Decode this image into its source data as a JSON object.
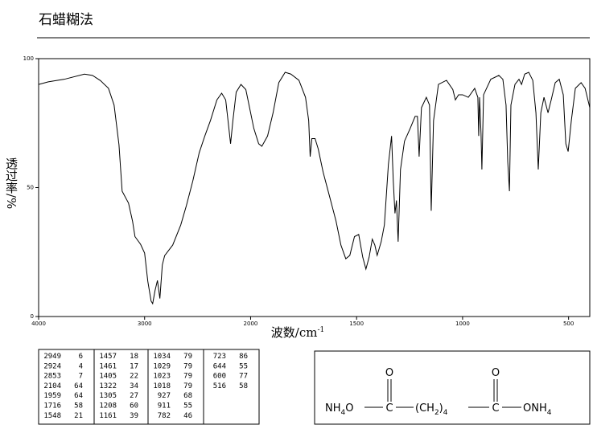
{
  "chart_data": {
    "type": "line",
    "title": "石蜡糊法",
    "x_label": "波数/cm",
    "x_label_sup": "-1",
    "y_label": "透过率/%",
    "xlim": [
      4000,
      400
    ],
    "xticks": [
      4000,
      3000,
      2000,
      1500,
      1000,
      500
    ],
    "x_scale_break": 2000,
    "ylim": [
      0,
      100
    ],
    "yticks": [
      0,
      50,
      100
    ],
    "x": [
      4000,
      3909,
      3758,
      3568,
      3492,
      3417,
      3341,
      3288,
      3242,
      3212,
      3152,
      3114,
      3091,
      3038,
      3000,
      2970,
      2939,
      2924,
      2902,
      2879,
      2856,
      2833,
      2811,
      2735,
      2659,
      2606,
      2545,
      2485,
      2432,
      2379,
      2318,
      2273,
      2235,
      2205,
      2189,
      2167,
      2136,
      2091,
      2045,
      2015,
      1985,
      1962,
      1947,
      1920,
      1894,
      1867,
      1837,
      1810,
      1772,
      1741,
      1726,
      1719,
      1711,
      1696,
      1681,
      1658,
      1627,
      1597,
      1574,
      1551,
      1532,
      1510,
      1490,
      1471,
      1456,
      1441,
      1426,
      1414,
      1403,
      1384,
      1369,
      1350,
      1335,
      1327,
      1319,
      1312,
      1304,
      1293,
      1274,
      1247,
      1224,
      1213,
      1205,
      1194,
      1171,
      1156,
      1148,
      1137,
      1114,
      1076,
      1046,
      1034,
      1019,
      1000,
      973,
      943,
      928,
      924,
      920,
      913,
      909,
      901,
      867,
      829,
      810,
      795,
      787,
      779,
      772,
      753,
      734,
      722,
      707,
      688,
      669,
      654,
      643,
      631,
      616,
      597,
      582,
      563,
      544,
      525,
      513,
      502,
      487,
      468,
      441,
      422,
      400
    ],
    "series": [
      {
        "color": "#000000",
        "values": [
          90,
          91,
          92,
          94,
          93.5,
          91.5,
          88.5,
          82,
          66.7,
          48.6,
          44,
          37,
          31,
          28,
          24.6,
          13.7,
          6,
          5,
          10,
          14,
          7,
          20,
          23.6,
          27.7,
          35.5,
          43,
          52.6,
          63.5,
          70,
          76,
          84,
          86.6,
          84,
          73,
          67,
          76,
          87,
          90,
          88,
          82,
          73,
          67,
          66,
          70,
          79,
          90.7,
          94.7,
          94,
          91.6,
          85,
          76,
          62,
          69,
          69,
          65,
          56,
          46.4,
          37,
          27.7,
          22.4,
          23.7,
          31,
          31.8,
          23,
          18.4,
          23,
          30,
          27.7,
          23.7,
          29,
          35.5,
          59,
          70,
          52.6,
          40,
          45,
          29,
          57,
          68,
          73,
          77.6,
          77.6,
          62,
          81,
          85,
          82,
          41,
          76,
          90,
          91.6,
          88,
          84,
          86,
          86,
          85,
          88.5,
          85,
          70,
          85,
          71,
          57,
          86,
          92,
          93.5,
          92,
          82,
          60,
          48.6,
          82,
          90,
          92,
          90,
          94,
          94.7,
          91.6,
          79,
          57,
          79,
          85,
          79,
          84,
          90.7,
          92,
          86,
          67,
          64,
          76,
          88.5,
          90.7,
          88.5,
          81
        ]
      }
    ]
  },
  "peak_table": {
    "columns": [
      [
        [
          2949,
          6
        ],
        [
          2924,
          4
        ],
        [
          2853,
          7
        ],
        [
          2104,
          64
        ],
        [
          1959,
          64
        ],
        [
          1716,
          58
        ],
        [
          1548,
          21
        ]
      ],
      [
        [
          1457,
          18
        ],
        [
          1461,
          17
        ],
        [
          1405,
          22
        ],
        [
          1322,
          34
        ],
        [
          1305,
          27
        ],
        [
          1208,
          60
        ],
        [
          1161,
          39
        ]
      ],
      [
        [
          1034,
          79
        ],
        [
          1029,
          79
        ],
        [
          1023,
          79
        ],
        [
          1018,
          79
        ],
        [
          927,
          68
        ],
        [
          911,
          55
        ],
        [
          782,
          46
        ]
      ],
      [
        [
          723,
          86
        ],
        [
          644,
          55
        ],
        [
          600,
          77
        ],
        [
          516,
          58
        ]
      ]
    ]
  },
  "structure": {
    "carbonyl_o": "O",
    "tokens": [
      "NH",
      "4",
      "O",
      "C",
      "(CH",
      "2",
      ")",
      "4",
      "C",
      "ONH",
      "4"
    ]
  }
}
